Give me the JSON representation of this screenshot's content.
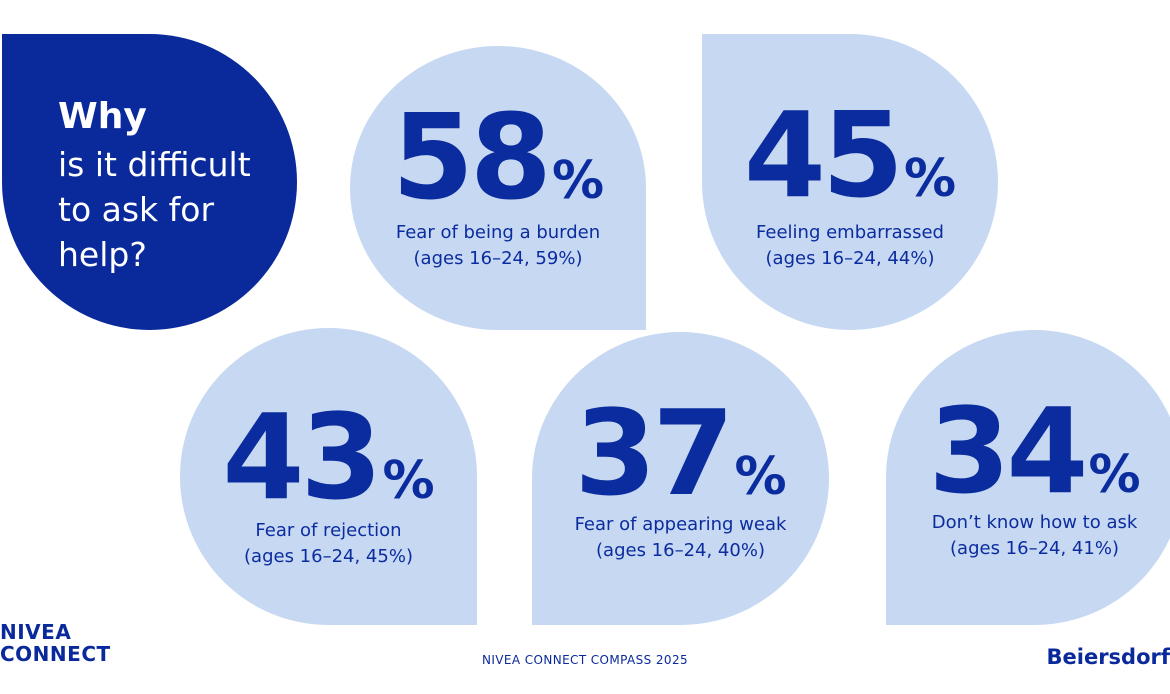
{
  "title": {
    "bold": "Why",
    "lines": [
      "is it difficult",
      "to ask for",
      "help?"
    ]
  },
  "stats": [
    {
      "value": "58",
      "unit": "%",
      "label": "Fear of being a burden",
      "sub": "(ages 16–24, 59%)"
    },
    {
      "value": "45",
      "unit": "%",
      "label": "Feeling embarrassed",
      "sub": "(ages 16–24, 44%)"
    },
    {
      "value": "43",
      "unit": "%",
      "label": "Fear of rejection",
      "sub": "(ages 16–24, 45%)"
    },
    {
      "value": "37",
      "unit": "%",
      "label": "Fear of appearing weak",
      "sub": "(ages 16–24, 40%)"
    },
    {
      "value": "34",
      "unit": "%",
      "label": "Don’t know how to ask",
      "sub": "(ages 16–24, 41%)"
    }
  ],
  "footer": {
    "logo_line1": "NIVEA",
    "logo_line2": "CONNECT",
    "center": "NIVEA CONNECT COMPASS 2025",
    "brand": "Beiersdorf"
  },
  "colors": {
    "dark_blue": "#0a2a9b",
    "light_blue": "#c6d8f2"
  }
}
